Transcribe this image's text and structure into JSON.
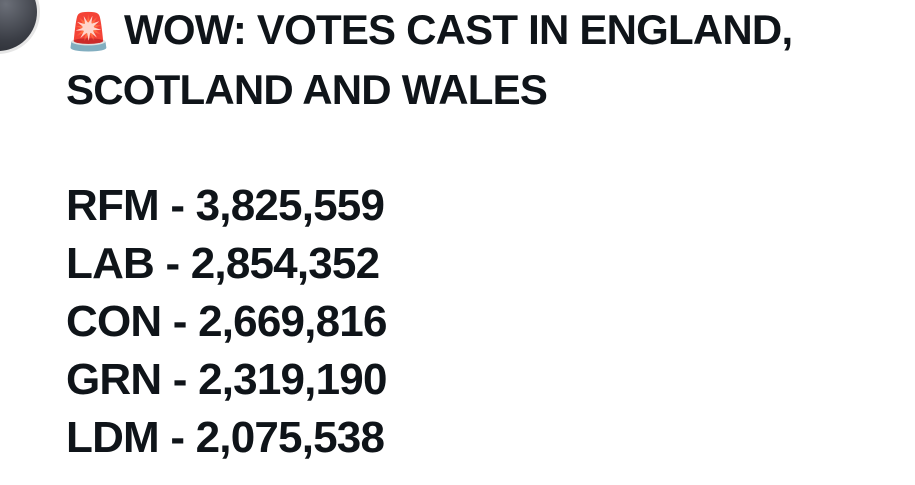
{
  "post": {
    "icon": "🚨",
    "title": "WOW: VOTES CAST IN ENGLAND, SCOTLAND AND WALES",
    "lines": [
      "RFM - 3,825,559",
      "LAB - 2,854,352",
      "CON - 2,669,816",
      "GRN - 2,319,190",
      "LDM - 2,075,538"
    ]
  }
}
